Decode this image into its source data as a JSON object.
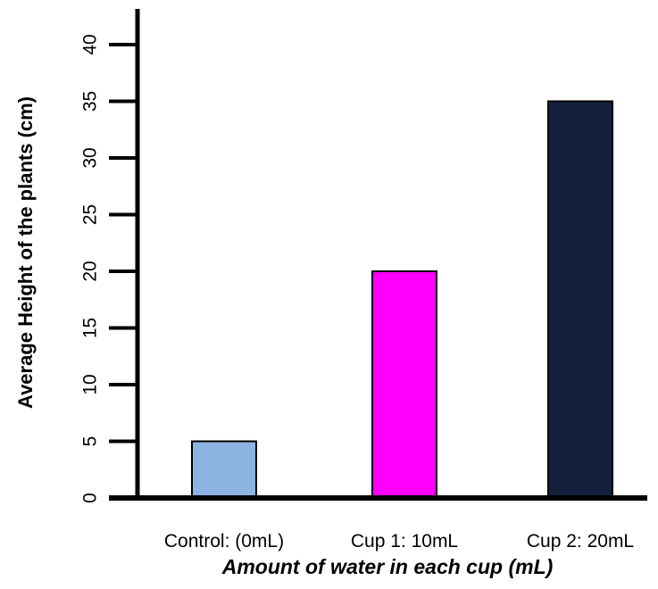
{
  "chart_data": {
    "type": "bar",
    "title": "",
    "categories": [
      "Control: (0mL)",
      "Cup 1: 10mL",
      "Cup 2: 20mL"
    ],
    "values": [
      5,
      20,
      35
    ],
    "colors": [
      "#8db3e2",
      "#ff00ff",
      "#14213d"
    ],
    "xlabel": "Amount of water in each cup (mL)",
    "ylabel": "Average Height of the plants (cm)",
    "ylim": [
      0,
      40
    ],
    "yticks": [
      0,
      5,
      10,
      15,
      20,
      25,
      30,
      35,
      40
    ],
    "grid": false,
    "legend": "none"
  }
}
